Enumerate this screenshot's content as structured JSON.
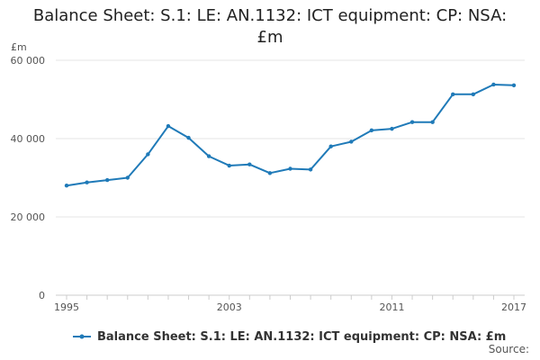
{
  "title_lines": [
    "Balance Sheet: S.1: LE: AN.1132: ICT equipment: CP: NSA:",
    "£m"
  ],
  "source_label": "Source:",
  "chart_data": {
    "type": "line",
    "title": "Balance Sheet: S.1: LE: AN.1132: ICT equipment: CP: NSA: £m",
    "ylabel": "£m",
    "xlabel": "",
    "x": [
      1995,
      1996,
      1997,
      1998,
      1999,
      2000,
      2001,
      2002,
      2003,
      2004,
      2005,
      2006,
      2007,
      2008,
      2009,
      2010,
      2011,
      2012,
      2013,
      2014,
      2015,
      2016,
      2017
    ],
    "series": [
      {
        "name": "Balance Sheet: S.1: LE: AN.1132: ICT equipment: CP: NSA: £m",
        "color": "#1f7ab8",
        "values": [
          28000,
          28800,
          29400,
          30000,
          36000,
          43200,
          40200,
          35500,
          33100,
          33400,
          31200,
          32300,
          32100,
          38000,
          39200,
          42100,
          42500,
          44200,
          44200,
          51300,
          51300,
          53800,
          53600
        ]
      }
    ],
    "xlim": [
      1995,
      2017
    ],
    "ylim": [
      0,
      60000
    ],
    "x_tick_labels": [
      "1995",
      "2003",
      "2011",
      "2017"
    ],
    "x_tick_values": [
      1995,
      2003,
      2011,
      2017
    ],
    "y_ticks": [
      0,
      20000,
      40000,
      60000
    ],
    "y_tick_labels": [
      "0",
      "20 000",
      "40 000",
      "60 000"
    ],
    "grid": "horizontal",
    "legend_position": "bottom-left"
  }
}
